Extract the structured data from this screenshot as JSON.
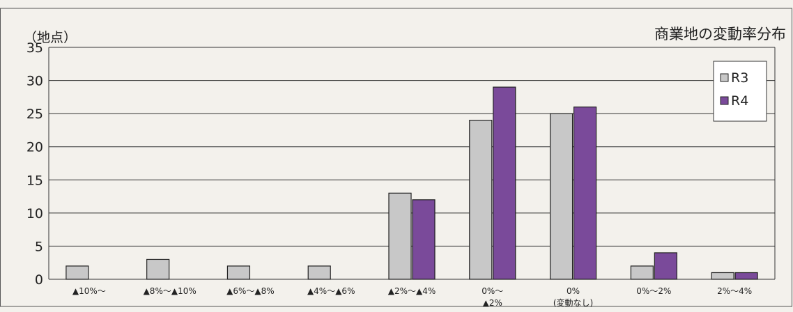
{
  "chart_data": {
    "type": "bar",
    "title": "商業地の変動率分布",
    "ylabel": "（地点）",
    "xlabel": "",
    "ylim": [
      0,
      35
    ],
    "yticks": [
      0,
      5,
      10,
      15,
      20,
      25,
      30,
      35
    ],
    "grid": true,
    "legend_position": "top-right",
    "categories": [
      [
        "▲10%〜"
      ],
      [
        "▲8%〜▲10%"
      ],
      [
        "▲6%〜▲8%"
      ],
      [
        "▲4%〜▲6%"
      ],
      [
        "▲2%〜▲4%"
      ],
      [
        "0%〜",
        "▲2%"
      ],
      [
        "0%",
        "(変動なし)"
      ],
      [
        "0%〜2%"
      ],
      [
        "2%〜4%"
      ]
    ],
    "series": [
      {
        "name": "R3",
        "color": "#c8c8c8",
        "values": [
          2,
          3,
          2,
          2,
          13,
          24,
          25,
          2,
          1
        ]
      },
      {
        "name": "R4",
        "color": "#7a4a9a",
        "values": [
          0,
          0,
          0,
          0,
          12,
          29,
          26,
          4,
          1
        ]
      }
    ]
  }
}
